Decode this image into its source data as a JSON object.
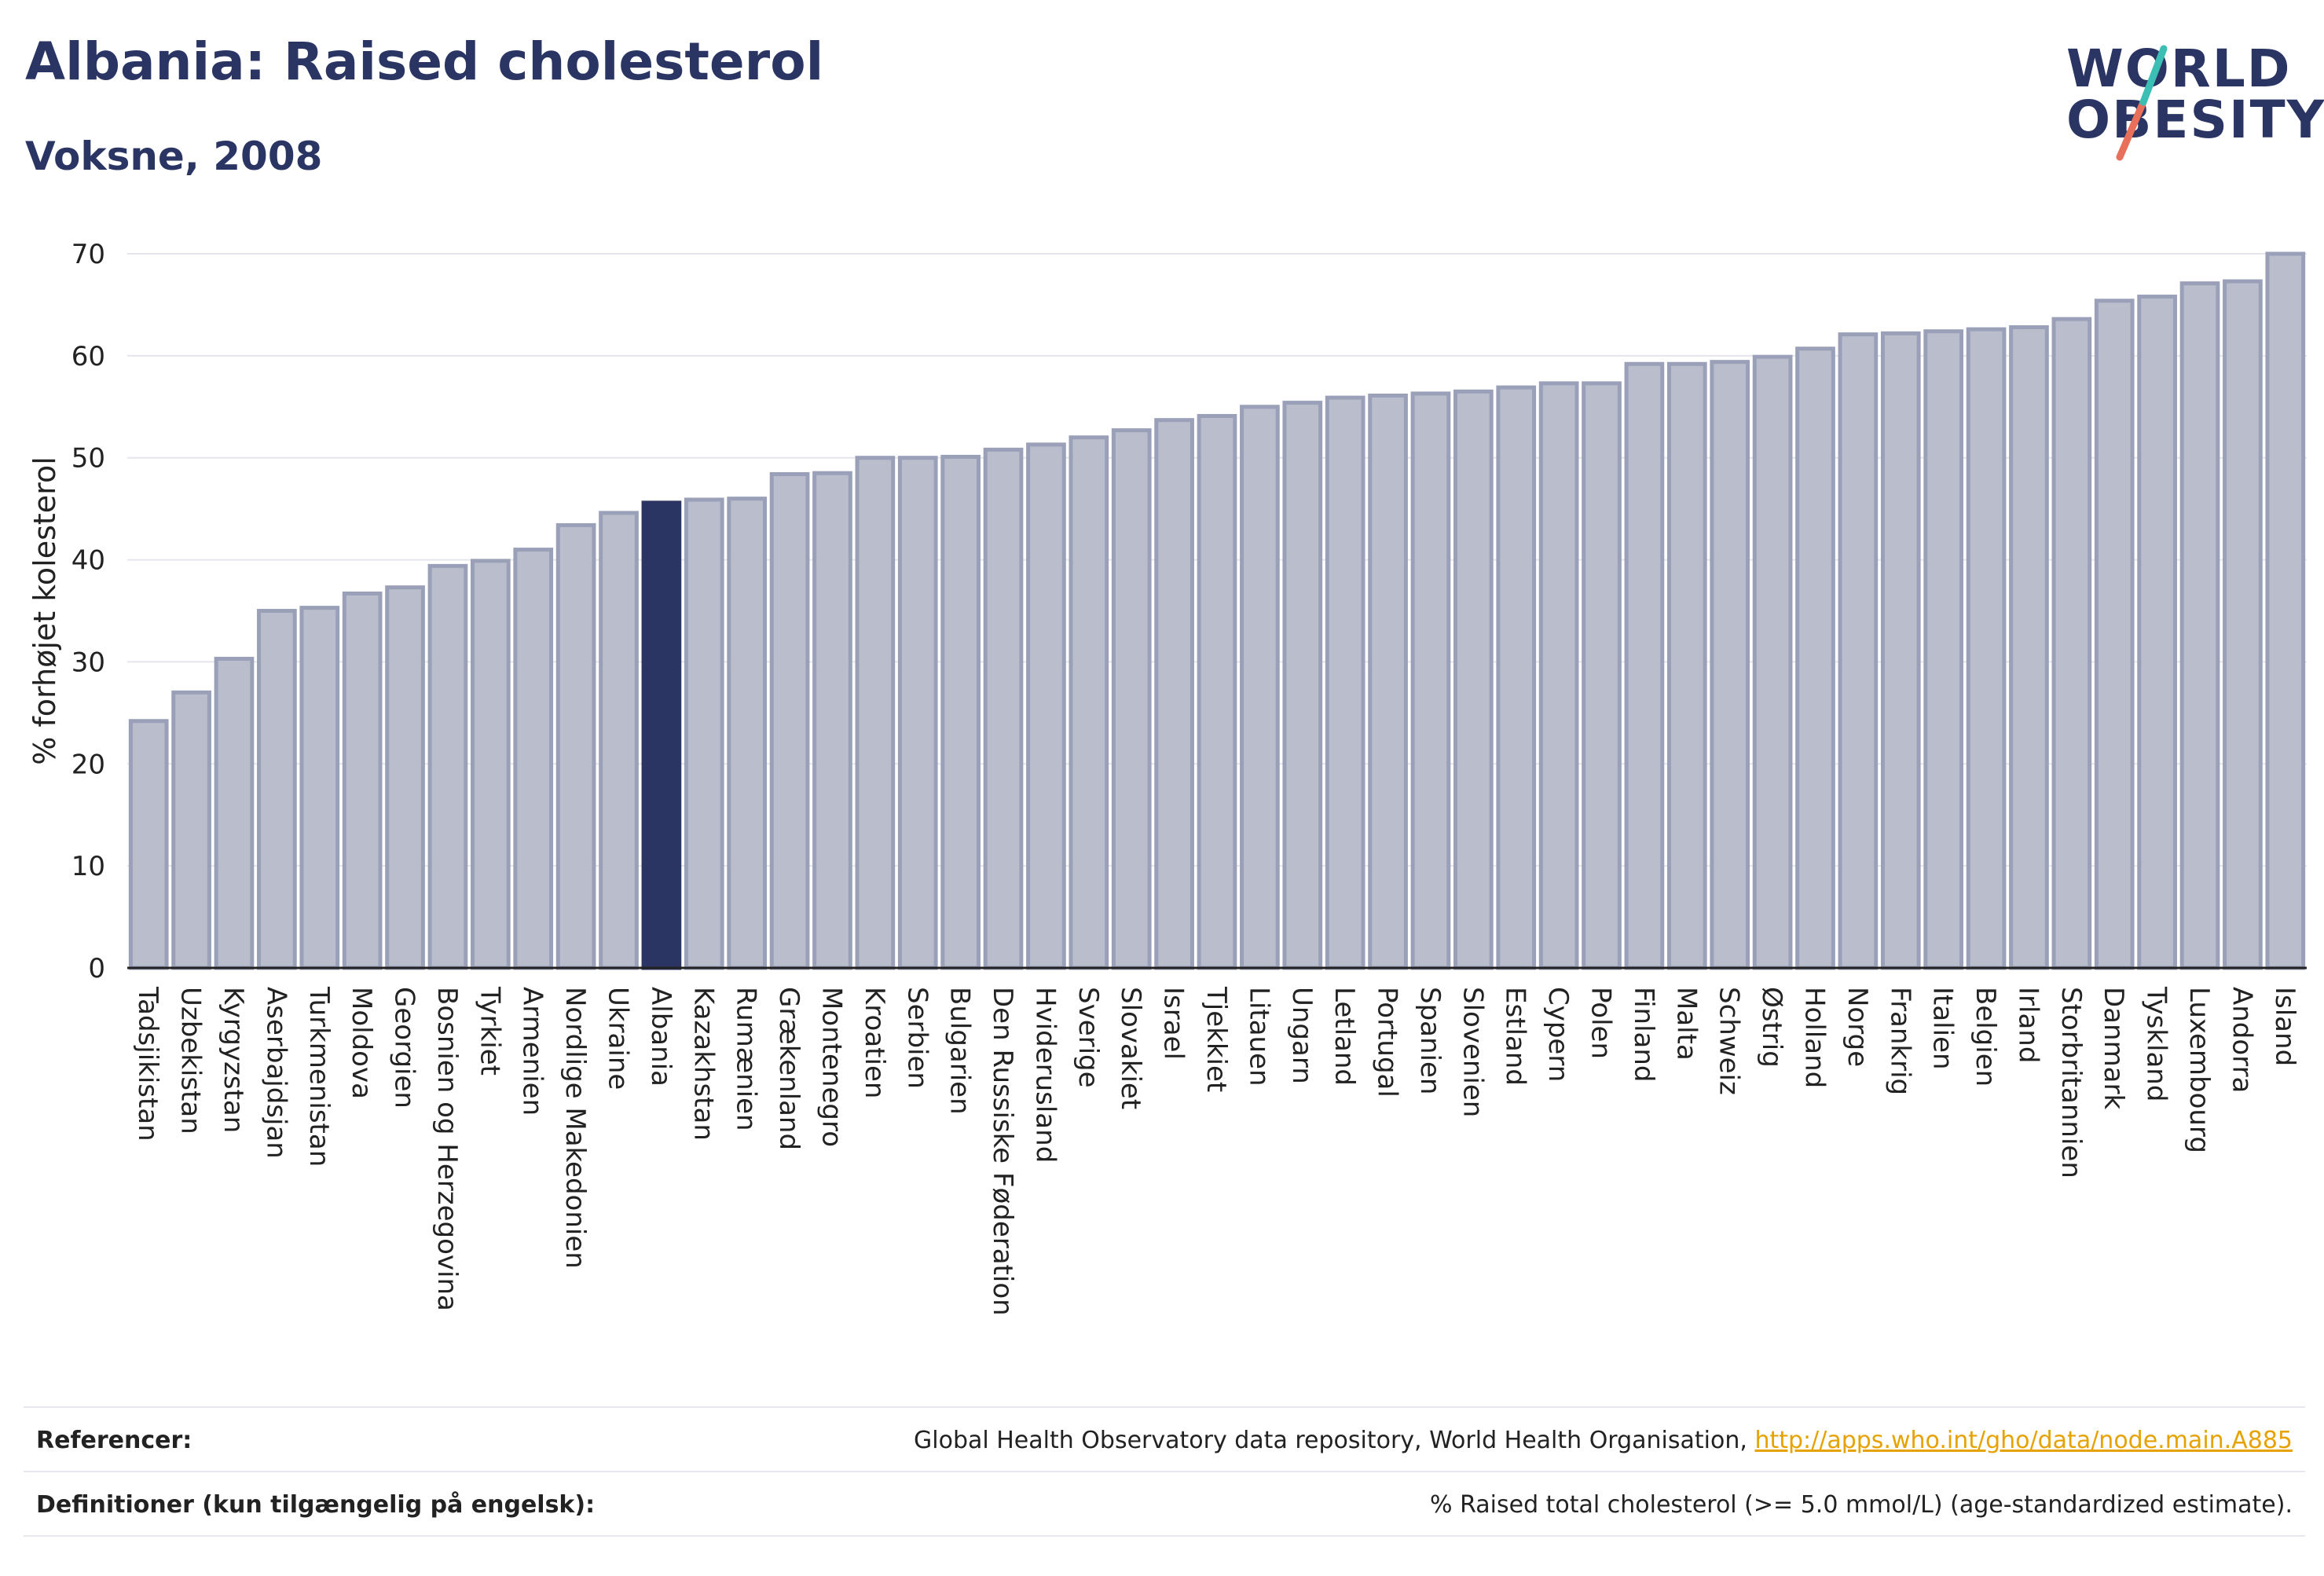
{
  "header": {
    "title": "Albania: Raised cholesterol",
    "subtitle": "Voksne, 2008"
  },
  "logo": {
    "line1": "WORLD",
    "line2": "OBESITY",
    "colors": {
      "text": "#2b3564",
      "slash_top": "#3bbfb4",
      "slash_bottom": "#e8705a"
    }
  },
  "chart_data": {
    "type": "bar",
    "ylabel": "% forhøjet kolesterol",
    "ylim": [
      0,
      70
    ],
    "yticks": [
      0,
      10,
      20,
      30,
      40,
      50,
      60,
      70
    ],
    "grid": true,
    "highlight": "Albania",
    "colors": {
      "bar": "#b9bdcc",
      "bar_edge": "#9aa0b8",
      "highlight": "#2b3564",
      "grid": "#e4e6ec",
      "axis": "#222222"
    },
    "categories": [
      "Tadsjikistan",
      "Uzbekistan",
      "Kyrgyzstan",
      "Aserbajdsjan",
      "Turkmenistan",
      "Moldova",
      "Georgien",
      "Bosnien og Herzegovina",
      "Tyrkiet",
      "Armenien",
      "Nordlige Makedonien",
      "Ukraine",
      "Albania",
      "Kazakhstan",
      "Rumænien",
      "Grækenland",
      "Montenegro",
      "Kroatien",
      "Serbien",
      "Bulgarien",
      "Den Russiske Føderation",
      "Hviderusland",
      "Sverige",
      "Slovakiet",
      "Israel",
      "Tjekkiet",
      "Litauen",
      "Ungarn",
      "Letland",
      "Portugal",
      "Spanien",
      "Slovenien",
      "Estland",
      "Cypern",
      "Polen",
      "Finland",
      "Malta",
      "Schweiz",
      "Østrig",
      "Holland",
      "Norge",
      "Frankrig",
      "Italien",
      "Belgien",
      "Irland",
      "Storbritannien",
      "Danmark",
      "Tyskland",
      "Luxembourg",
      "Andorra",
      "Island"
    ],
    "values": [
      24.2,
      27.0,
      30.3,
      35.0,
      35.3,
      36.7,
      37.3,
      39.4,
      39.9,
      41.0,
      43.4,
      44.6,
      45.6,
      45.9,
      46.0,
      48.4,
      48.5,
      50.0,
      50.0,
      50.1,
      50.8,
      51.3,
      52.0,
      52.7,
      53.7,
      54.1,
      55.0,
      55.4,
      55.9,
      56.1,
      56.3,
      56.5,
      56.9,
      57.3,
      57.3,
      59.2,
      59.2,
      59.4,
      59.9,
      60.7,
      62.1,
      62.2,
      62.4,
      62.6,
      62.8,
      63.6,
      65.4,
      65.8,
      67.1,
      67.3,
      70.0
    ]
  },
  "footer": {
    "references_label": "Referencer:",
    "references_text": "Global Health Observatory data repository, World Health Organisation, ",
    "references_link": "http://apps.who.int/gho/data/node.main.A885",
    "definitions_label": "Definitioner (kun tilgængelig på engelsk):",
    "definitions_text": "% Raised total cholesterol (>= 5.0 mmol/L) (age-standardized estimate)."
  }
}
